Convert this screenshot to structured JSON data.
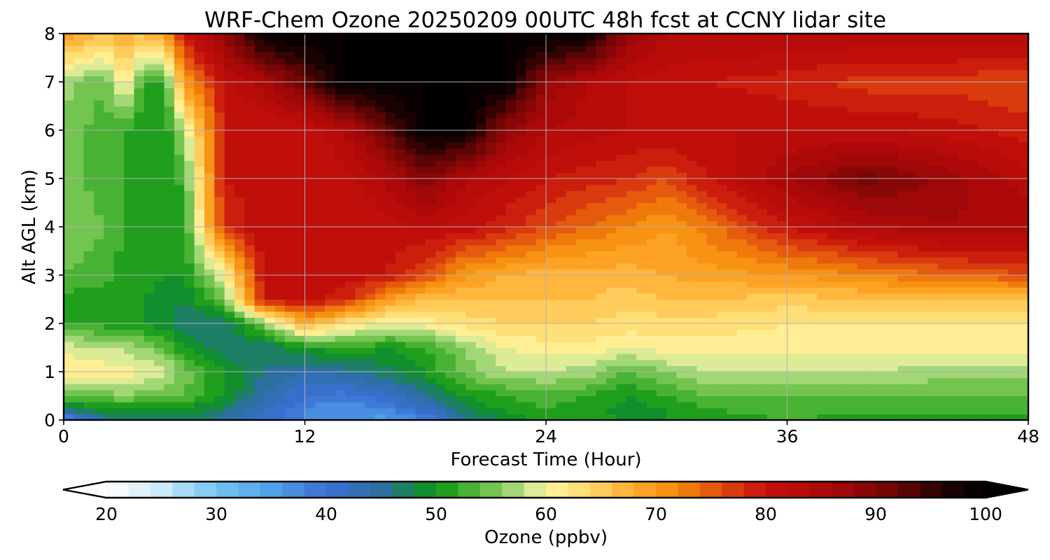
{
  "chart_data": {
    "type": "heatmap",
    "title": "WRF-Chem Ozone  20250209 00UTC 48h fcst at CCNY lidar site",
    "xlabel": "Forecast Time (Hour)",
    "ylabel": "Alt AGL (km)",
    "xlim": [
      0,
      48
    ],
    "ylim": [
      0,
      8
    ],
    "xticks": [
      0,
      12,
      24,
      36,
      48
    ],
    "yticks": [
      0,
      1,
      2,
      3,
      4,
      5,
      6,
      7,
      8
    ],
    "grid": true,
    "x": [
      0,
      2,
      3,
      4,
      5,
      6,
      8,
      10,
      12,
      14,
      16,
      18,
      20,
      22,
      24,
      26,
      28,
      30,
      32,
      36,
      40,
      44,
      48
    ],
    "y": [
      0,
      0.25,
      0.5,
      1,
      1.5,
      2,
      2.5,
      3,
      4,
      5,
      6,
      7,
      8
    ],
    "z": [
      [
        36,
        46,
        47,
        46,
        46,
        46,
        45,
        41,
        38,
        37,
        35,
        38,
        45,
        48,
        51,
        52,
        49,
        50,
        51,
        52,
        51,
        51,
        51
      ],
      [
        47,
        50,
        50,
        50,
        50,
        50,
        47,
        42,
        38,
        36,
        38,
        42,
        48,
        51,
        52,
        51,
        49,
        50,
        52,
        53,
        53,
        53,
        53
      ],
      [
        54,
        55,
        56,
        55,
        55,
        54,
        50,
        44,
        40,
        39,
        41,
        45,
        50,
        52,
        53,
        52,
        50,
        52,
        54,
        54,
        54,
        54,
        54
      ],
      [
        62,
        61,
        61,
        60,
        59,
        55,
        50,
        46,
        44,
        45,
        47,
        50,
        55,
        58,
        58,
        57,
        54,
        56,
        58,
        58,
        58,
        57,
        57
      ],
      [
        59,
        58,
        58,
        56,
        54,
        50,
        47,
        46,
        50,
        52,
        50,
        52,
        56,
        60,
        61,
        61,
        60,
        61,
        61,
        61,
        61,
        61,
        61
      ],
      [
        52,
        51,
        51,
        50,
        49,
        46,
        46,
        56,
        68,
        62,
        60,
        61,
        63,
        64,
        64,
        64,
        63,
        63,
        63,
        62,
        62,
        62,
        62
      ],
      [
        51,
        50,
        50,
        50,
        49,
        48,
        55,
        80,
        81,
        79,
        70,
        66,
        66,
        66,
        66,
        66,
        65,
        66,
        66,
        65,
        66,
        66,
        66
      ],
      [
        54,
        53,
        51,
        51,
        50,
        50,
        60,
        81,
        82,
        81,
        80,
        76,
        70,
        68,
        67,
        67,
        67,
        68,
        69,
        70,
        72,
        74,
        76
      ],
      [
        56,
        54,
        52,
        51,
        50,
        51,
        78,
        82,
        81,
        80,
        81,
        82,
        81,
        79,
        76,
        74,
        72,
        70,
        73,
        80,
        84,
        86,
        85
      ],
      [
        55,
        53,
        52,
        51,
        50,
        53,
        80,
        81,
        80,
        81,
        84,
        90,
        84,
        82,
        80,
        79,
        78,
        76,
        80,
        86,
        91,
        87,
        83
      ],
      [
        55,
        53,
        52,
        50,
        50,
        58,
        80,
        80,
        80,
        84,
        92,
        100,
        100,
        88,
        84,
        83,
        82,
        82,
        82,
        82,
        82,
        81,
        79
      ],
      [
        57,
        54,
        62,
        52,
        52,
        70,
        81,
        85,
        92,
        100,
        100,
        100,
        100,
        100,
        88,
        84,
        82,
        81,
        80,
        79,
        77,
        77,
        76
      ],
      [
        70,
        66,
        68,
        66,
        70,
        80,
        88,
        100,
        100,
        100,
        100,
        100,
        100,
        100,
        100,
        100,
        88,
        84,
        84,
        84,
        84,
        84,
        84
      ]
    ],
    "colorbar": {
      "label": "Ozone  (ppbv)",
      "min": 20,
      "max": 100,
      "ticks": [
        "20",
        "30",
        "40",
        "50",
        "60",
        "70",
        "80",
        "90",
        "100"
      ],
      "extend": "both",
      "stops": [
        [
          20,
          "#ffffff"
        ],
        [
          25,
          "#cdeaf9"
        ],
        [
          30,
          "#74c5f2"
        ],
        [
          35,
          "#4fa2ea"
        ],
        [
          40,
          "#3a6fd4"
        ],
        [
          45,
          "#2c6fa0"
        ],
        [
          50,
          "#0a9612"
        ],
        [
          54,
          "#5cbb3e"
        ],
        [
          58,
          "#b9e08a"
        ],
        [
          60,
          "#fff6a0"
        ],
        [
          64,
          "#ffd76a"
        ],
        [
          68,
          "#ffab2e"
        ],
        [
          72,
          "#f48a09"
        ],
        [
          76,
          "#e04a10"
        ],
        [
          80,
          "#c50f0a"
        ],
        [
          86,
          "#a80808"
        ],
        [
          92,
          "#6a0606"
        ],
        [
          96,
          "#240202"
        ],
        [
          100,
          "#000000"
        ]
      ]
    }
  }
}
